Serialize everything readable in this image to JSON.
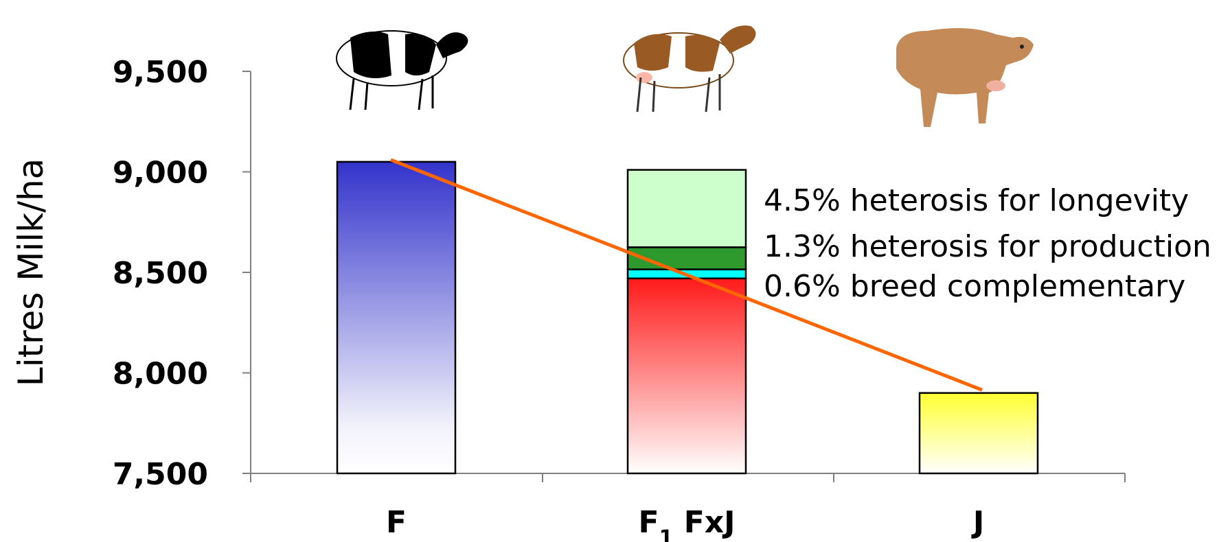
{
  "chart_data": {
    "type": "bar",
    "categories": [
      "F",
      "F1 FxJ",
      "J"
    ],
    "category_labels": [
      {
        "main": "F",
        "sub": ""
      },
      {
        "main": "F",
        "sub": "1",
        "suffix": " FxJ"
      },
      {
        "main": "J",
        "sub": ""
      }
    ],
    "values": [
      9050,
      9010,
      7900
    ],
    "stacked_components": {
      "category": "F1 FxJ",
      "segments": [
        {
          "from": 7500,
          "to": 8470,
          "color": "#ff1a1a",
          "gradient": true
        },
        {
          "from": 8470,
          "to": 8515,
          "color": "#00ffff",
          "gradient": false
        },
        {
          "from": 8515,
          "to": 8625,
          "color": "#2e9a2e",
          "gradient": false
        },
        {
          "from": 8625,
          "to": 9010,
          "color": "#ccffcc",
          "gradient": false
        }
      ]
    },
    "bar_colors": [
      "#3333cc",
      "#ff1a1a",
      "#ffff00"
    ],
    "trend_line": {
      "from": 9060,
      "to": 7915,
      "color": "#ff6600"
    },
    "annotations": [
      "4.5% heterosis for longevity",
      "1.3% heterosis for production",
      "0.6% breed complementary"
    ],
    "ylabel": "Litres Milk/ha",
    "xlabel": "",
    "yticks": [
      7500,
      8000,
      8500,
      9000,
      9500
    ],
    "ytick_labels": [
      "7,500",
      "8,000",
      "8,500",
      "9,000",
      "9,500"
    ],
    "ylim": [
      7500,
      9500
    ],
    "grid": false,
    "cow_images": [
      "holstein-cow-icon",
      "crossbred-cow-icon",
      "jersey-cow-icon"
    ]
  }
}
